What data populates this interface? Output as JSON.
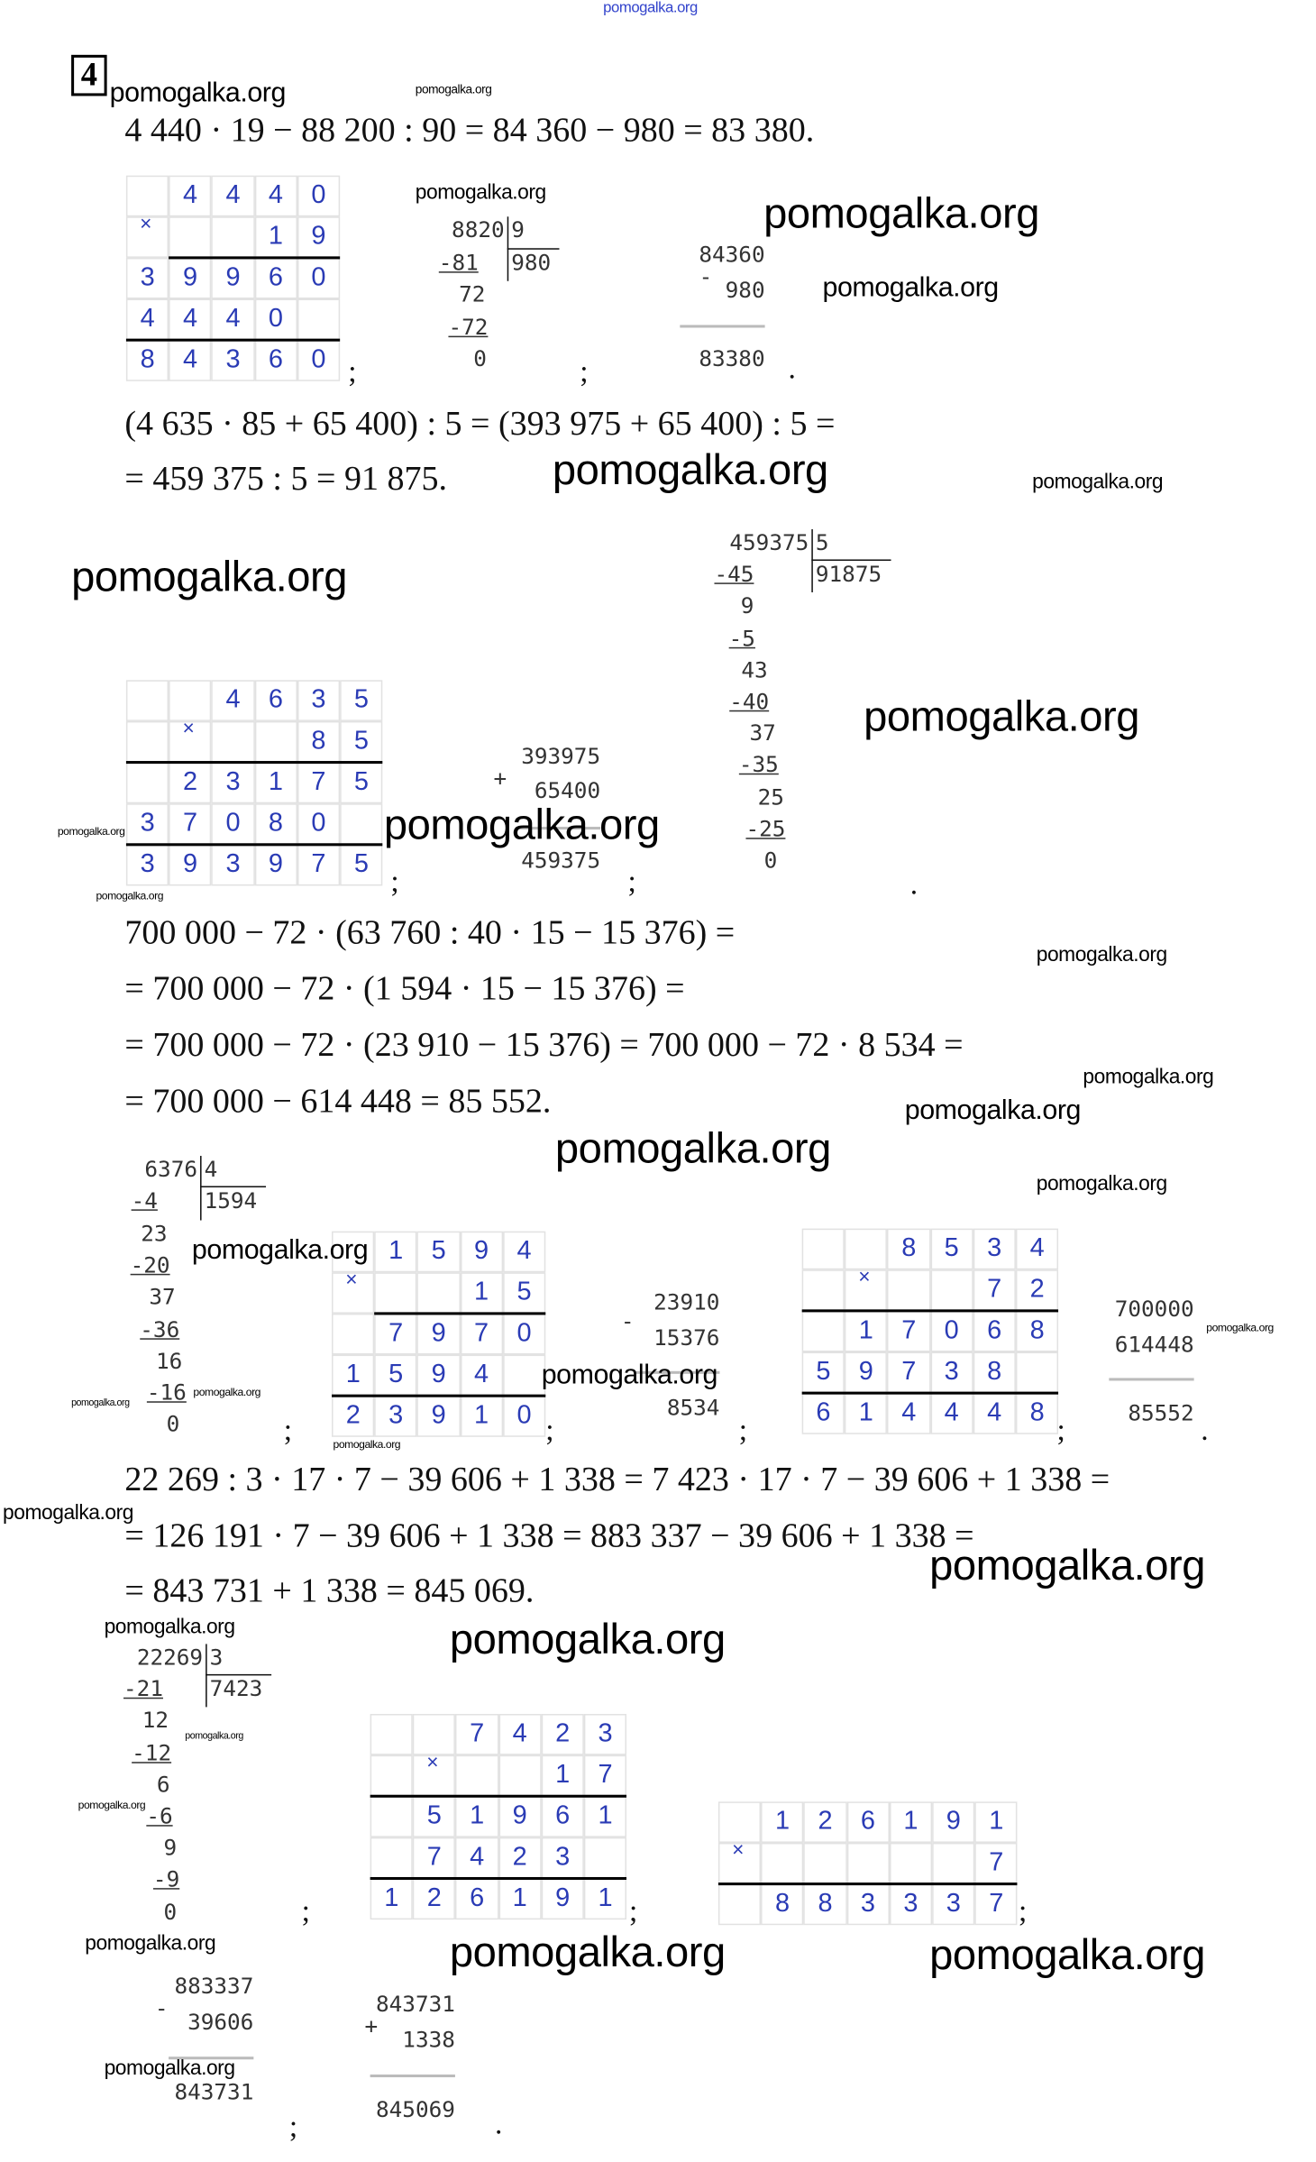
{
  "watermark": "pomogalka.org",
  "task_number": "4",
  "times_symbol": "×",
  "punct": {
    "semicolon": ";",
    "period": "."
  },
  "equations": [
    "4 440 · 19 − 88 200 : 90 = 84 360 − 980 = 83 380.",
    "(4 635 · 85 + 65 400) : 5 = (393 975 + 65 400) : 5 =",
    "= 459 375 : 5 = 91 875.",
    "700 000 − 72 · (63 760 : 40 · 15 − 15 376) =",
    "= 700 000 − 72 · (1 594 · 15 − 15 376) =",
    "= 700 000 − 72 · (23 910 − 15 376) = 700 000 − 72 · 8 534 =",
    "= 700 000 − 614 448 = 85 552.",
    "22 269 : 3 · 17 · 7 − 39 606 + 1 338 = 7 423 · 17 · 7 − 39 606 + 1 338 =",
    "= 126 191 · 7 − 39 606 + 1 338 = 883 337 − 39 606 + 1 338 =",
    "= 843 731 + 1 338 = 845 069."
  ],
  "grids": [
    {
      "rows": [
        [
          "",
          "4",
          "4",
          "4",
          "0"
        ],
        [
          "",
          "",
          "",
          "1",
          "9"
        ],
        [
          "3",
          "9",
          "9",
          "6",
          "0"
        ],
        [
          "4",
          "4",
          "4",
          "0",
          ""
        ],
        [
          "8",
          "4",
          "3",
          "6",
          "0"
        ]
      ]
    },
    {
      "rows": [
        [
          "",
          "",
          "4",
          "6",
          "3",
          "5"
        ],
        [
          "",
          "",
          "",
          "",
          "8",
          "5"
        ],
        [
          "",
          "2",
          "3",
          "1",
          "7",
          "5"
        ],
        [
          "3",
          "7",
          "0",
          "8",
          "0",
          ""
        ],
        [
          "3",
          "9",
          "3",
          "9",
          "7",
          "5"
        ]
      ]
    },
    {
      "rows": [
        [
          "",
          "1",
          "5",
          "9",
          "4"
        ],
        [
          "",
          "",
          "",
          "1",
          "5"
        ],
        [
          "",
          "7",
          "9",
          "7",
          "0"
        ],
        [
          "1",
          "5",
          "9",
          "4",
          ""
        ],
        [
          "2",
          "3",
          "9",
          "1",
          "0"
        ]
      ]
    },
    {
      "rows": [
        [
          "",
          "",
          "8",
          "5",
          "3",
          "4"
        ],
        [
          "",
          "",
          "",
          "",
          "7",
          "2"
        ],
        [
          "",
          "1",
          "7",
          "0",
          "6",
          "8"
        ],
        [
          "5",
          "9",
          "7",
          "3",
          "8",
          ""
        ],
        [
          "6",
          "1",
          "4",
          "4",
          "4",
          "8"
        ]
      ]
    },
    {
      "rows": [
        [
          "",
          "",
          "7",
          "4",
          "2",
          "3"
        ],
        [
          "",
          "",
          "",
          "",
          "1",
          "7"
        ],
        [
          "",
          "5",
          "1",
          "9",
          "6",
          "1"
        ],
        [
          "",
          "7",
          "4",
          "2",
          "3",
          ""
        ],
        [
          "1",
          "2",
          "6",
          "1",
          "9",
          "1"
        ]
      ]
    },
    {
      "rows": [
        [
          "",
          "1",
          "2",
          "6",
          "1",
          "9",
          "1"
        ],
        [
          "",
          "",
          "",
          "",
          "",
          "",
          "7"
        ],
        [
          "",
          "8",
          "8",
          "3",
          "3",
          "3",
          "7"
        ]
      ]
    }
  ],
  "divisions": [
    {
      "divisor": "9",
      "quotient": "980",
      "steps": [
        "8820",
        "-81",
        "72",
        "-72",
        "0"
      ]
    },
    {
      "divisor": "5",
      "quotient": "91875",
      "steps": [
        "459375",
        "-45",
        "9",
        "-5",
        "43",
        "-40",
        "37",
        "-35",
        "25",
        "-25",
        "0"
      ]
    },
    {
      "divisor": "4",
      "quotient": "1594",
      "steps": [
        "6376",
        "-4",
        "23",
        "-20",
        "37",
        "-36",
        "16",
        "-16",
        "0"
      ]
    },
    {
      "divisor": "3",
      "quotient": "7423",
      "steps": [
        "22269",
        "-21",
        "12",
        "-12",
        "6",
        "-6",
        "9",
        "-9",
        "0"
      ]
    }
  ],
  "column_ops": [
    {
      "sign": "-",
      "rows": [
        "84360",
        "980",
        "83380"
      ]
    },
    {
      "sign": "+",
      "rows": [
        "393975",
        "65400",
        "459375"
      ]
    },
    {
      "sign": "-",
      "rows": [
        "23910",
        "15376",
        "8534"
      ]
    },
    {
      "sign": "",
      "rows": [
        "700000",
        "614448",
        "85552"
      ]
    },
    {
      "sign": "-",
      "rows": [
        "883337",
        "39606",
        "843731"
      ]
    },
    {
      "sign": "+",
      "rows": [
        "843731",
        "1338",
        "845069"
      ]
    }
  ]
}
